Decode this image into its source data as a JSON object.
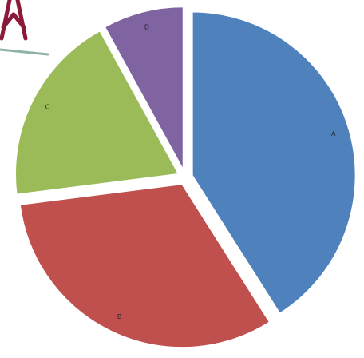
{
  "chart_data": {
    "type": "pie",
    "categories": [
      "A",
      "B",
      "C",
      "D"
    ],
    "values": [
      41,
      32,
      19,
      8
    ],
    "colors": [
      "#4f81bd",
      "#c0504d",
      "#9bbb59",
      "#8064a2"
    ]
  }
}
